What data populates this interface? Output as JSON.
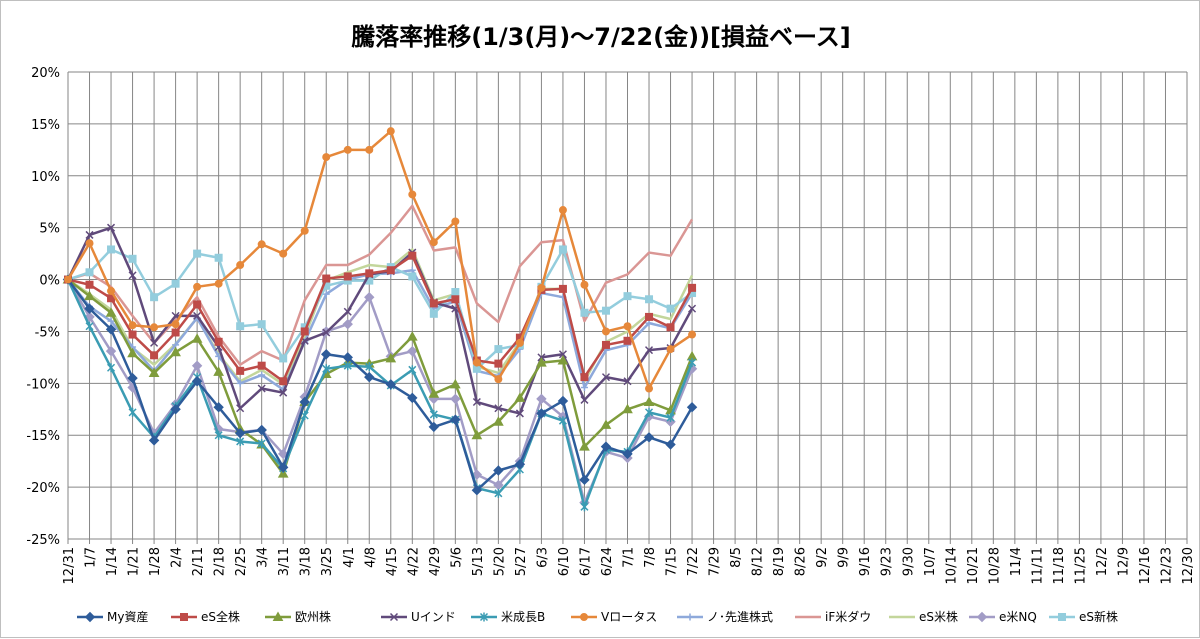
{
  "chart_data": {
    "type": "line",
    "title": "騰落率推移(1/3(月)～7/22(金))[損益ベース]",
    "xlabel": "",
    "ylabel": "",
    "ylim": [
      -25,
      20
    ],
    "y_ticks": [
      20,
      15,
      10,
      5,
      0,
      -5,
      -10,
      -15,
      -20,
      -25
    ],
    "y_tick_labels": [
      "20%",
      "15%",
      "10%",
      "5%",
      "0%",
      "-5%",
      "-10%",
      "-15%",
      "-20%",
      "-25%"
    ],
    "x_labels": [
      "12/31",
      "1/7",
      "1/14",
      "1/21",
      "1/28",
      "2/4",
      "2/11",
      "2/18",
      "2/25",
      "3/4",
      "3/11",
      "3/18",
      "3/25",
      "4/1",
      "4/8",
      "4/15",
      "4/22",
      "4/29",
      "5/6",
      "5/13",
      "5/20",
      "5/27",
      "6/3",
      "6/10",
      "6/17",
      "6/24",
      "7/1",
      "7/8",
      "7/15",
      "7/22",
      "7/29",
      "8/5",
      "8/12",
      "8/19",
      "8/26",
      "9/2",
      "9/9",
      "9/16",
      "9/23",
      "9/30",
      "10/7",
      "10/14",
      "10/21",
      "10/28",
      "11/4",
      "11/11",
      "11/18",
      "11/25",
      "12/2",
      "12/9",
      "12/16",
      "12/23",
      "12/30"
    ],
    "grid": true,
    "legend_position": "bottom",
    "series": [
      {
        "name": "My資産",
        "color": "#2E5C9A",
        "marker": "diamond",
        "values": [
          0,
          -2.8,
          -4.8,
          -9.5,
          -15.5,
          -12.5,
          -9.8,
          -12.3,
          -14.8,
          -14.5,
          -18.1,
          -11.8,
          -7.2,
          -7.5,
          -9.4,
          -10.1,
          -11.4,
          -14.2,
          -13.5,
          -20.3,
          -18.4,
          -17.8,
          -12.9,
          -11.7,
          -19.3,
          -16.1,
          -16.8,
          -15.2,
          -15.9,
          -12.3
        ]
      },
      {
        "name": "eS全株",
        "color": "#BE4B48",
        "marker": "square",
        "values": [
          0,
          -0.5,
          -1.8,
          -5.3,
          -7.3,
          -5.1,
          -2.4,
          -6.0,
          -8.8,
          -8.3,
          -9.8,
          -5.0,
          0.1,
          0.3,
          0.6,
          0.9,
          2.3,
          -2.3,
          -1.9,
          -7.8,
          -8.1,
          -5.6,
          -1.0,
          -0.9,
          -9.4,
          -6.3,
          -5.9,
          -3.6,
          -4.6,
          -0.8
        ]
      },
      {
        "name": "欧州株",
        "color": "#7F9C3C",
        "marker": "triangle",
        "values": [
          0,
          -1.6,
          -3.2,
          -7.1,
          -9.0,
          -7.0,
          -5.7,
          -8.9,
          -14.4,
          -15.9,
          -18.7,
          -11.8,
          -9.1,
          -8.0,
          -8.1,
          -7.6,
          -5.5,
          -11.0,
          -10.1,
          -15.0,
          -13.7,
          -11.4,
          -8.0,
          -7.8,
          -16.1,
          -14.0,
          -12.5,
          -11.8,
          -12.6,
          -7.4
        ]
      },
      {
        "name": "Uインド",
        "color": "#604A7B",
        "marker": "x",
        "values": [
          0,
          4.3,
          5.0,
          0.4,
          -6.1,
          -3.5,
          -3.5,
          -6.5,
          -12.4,
          -10.5,
          -10.9,
          -5.9,
          -5.1,
          -3.1,
          0.5,
          0.8,
          2.6,
          -2.2,
          -2.8,
          -11.8,
          -12.4,
          -12.9,
          -7.5,
          -7.2,
          -11.6,
          -9.4,
          -9.8,
          -6.8,
          -6.6,
          -2.8
        ]
      },
      {
        "name": "米成長B",
        "color": "#3B9CB3",
        "marker": "asterisk",
        "values": [
          0,
          -4.5,
          -8.5,
          -12.8,
          -15.2,
          -12.2,
          -9.4,
          -15.0,
          -15.6,
          -15.8,
          -18.2,
          -13.1,
          -8.6,
          -8.3,
          -8.4,
          -10.2,
          -8.7,
          -13.0,
          -13.5,
          -20.1,
          -20.6,
          -18.3,
          -12.9,
          -13.6,
          -21.9,
          -16.4,
          -16.6,
          -12.8,
          -13.3,
          -8.0
        ]
      },
      {
        "name": "Vロータス",
        "color": "#E6883A",
        "marker": "circle",
        "values": [
          0,
          3.5,
          -1.1,
          -4.4,
          -4.6,
          -4.3,
          -0.7,
          -0.4,
          1.4,
          3.4,
          2.5,
          4.7,
          11.8,
          12.5,
          12.5,
          14.3,
          8.2,
          3.6,
          5.6,
          -8.0,
          -9.6,
          -6.1,
          -0.8,
          6.7,
          -0.5,
          -5.0,
          -4.5,
          -10.5,
          -6.7,
          -5.3
        ]
      },
      {
        "name": "ノ･先進株式",
        "color": "#8EA9DB",
        "marker": "plus",
        "values": [
          0,
          -2.6,
          -4.0,
          -6.5,
          -8.8,
          -6.3,
          -3.7,
          -7.4,
          -10.0,
          -9.2,
          -10.6,
          -6.0,
          -1.4,
          0.0,
          0.5,
          0.6,
          0.9,
          -2.8,
          -2.1,
          -8.8,
          -9.3,
          -6.7,
          -1.3,
          -1.7,
          -10.4,
          -6.8,
          -6.3,
          -4.2,
          -4.7,
          -1.3
        ]
      },
      {
        "name": "iF米ダウ",
        "color": "#DA9694",
        "marker": "none",
        "values": [
          0,
          0.6,
          -0.7,
          -3.5,
          -6.1,
          -3.9,
          -1.7,
          -5.5,
          -8.2,
          -6.9,
          -7.8,
          -2.0,
          1.4,
          1.4,
          2.4,
          4.5,
          7.1,
          2.8,
          3.1,
          -2.3,
          -4.1,
          1.3,
          3.6,
          3.8,
          -4.0,
          -0.3,
          0.5,
          2.6,
          2.3,
          5.8
        ]
      },
      {
        "name": "eS米株",
        "color": "#C3D69B",
        "marker": "none",
        "values": [
          0,
          -1.4,
          -2.9,
          -6.6,
          -8.2,
          -6.2,
          -3.7,
          -7.2,
          -9.8,
          -8.7,
          -10.1,
          -5.5,
          -0.1,
          0.7,
          1.4,
          1.2,
          2.9,
          -2.0,
          -1.4,
          -8.4,
          -9.0,
          -6.0,
          -0.9,
          -0.9,
          -9.8,
          -6.0,
          -5.0,
          -3.3,
          -3.8,
          0.4
        ]
      },
      {
        "name": "e米NQ",
        "color": "#A29CC6",
        "marker": "diamond",
        "values": [
          0,
          -3.6,
          -6.9,
          -10.4,
          -14.8,
          -12.0,
          -8.3,
          -14.4,
          -14.7,
          -14.5,
          -16.8,
          -11.3,
          -5.0,
          -4.3,
          -1.7,
          -7.4,
          -6.9,
          -11.5,
          -11.5,
          -18.8,
          -19.8,
          -17.5,
          -11.5,
          -13.2,
          -21.5,
          -16.6,
          -17.2,
          -13.2,
          -13.7,
          -8.6
        ]
      },
      {
        "name": "eS新株",
        "color": "#93CDDD",
        "marker": "square",
        "values": [
          0,
          0.7,
          2.9,
          2.0,
          -1.7,
          -0.4,
          2.5,
          2.1,
          -4.5,
          -4.3,
          -7.6,
          -4.6,
          -0.6,
          -0.1,
          -0.1,
          1.2,
          0.3,
          -3.3,
          -1.2,
          -8.6,
          -6.7,
          -6.3,
          -0.7,
          2.9,
          -3.2,
          -3.0,
          -1.6,
          -1.9,
          -2.8,
          -1.3
        ]
      }
    ]
  }
}
